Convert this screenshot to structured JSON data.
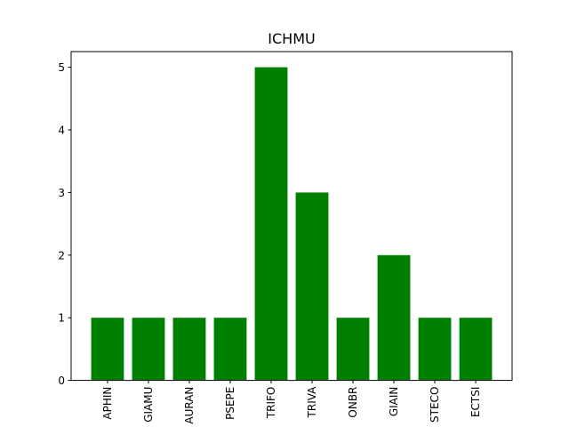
{
  "chart_data": {
    "type": "bar",
    "title": "ICHMU",
    "xlabel": "",
    "ylabel": "",
    "categories": [
      "APHIN",
      "GIAMU",
      "AURAN",
      "PSEPE",
      "TRIFO",
      "TRIVA",
      "ONBR",
      "GIAIN",
      "STECO",
      "ECTSI"
    ],
    "values": [
      1,
      1,
      1,
      1,
      5,
      3,
      1,
      2,
      1,
      1
    ],
    "ylim": [
      0,
      5.25
    ],
    "yticks": [
      0,
      1,
      2,
      3,
      4,
      5
    ],
    "bar_color": "#008000",
    "grid": false,
    "legend": "none"
  }
}
